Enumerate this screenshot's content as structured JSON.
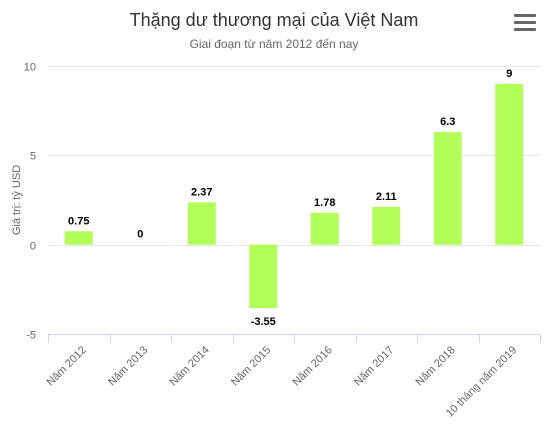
{
  "menu": {
    "icon": "hamburger-menu-icon"
  },
  "chart_data": {
    "type": "bar",
    "title": "Thặng dư thương mại của Việt Nam",
    "subtitle": "Giai đoạn từ năm 2012 đến nay",
    "ylabel": "Giá trị: tỷ USD",
    "xlabel": "",
    "categories": [
      "Năm 2012",
      "Năm 2013",
      "Năm 2014",
      "Năm 2015",
      "Năm 2016",
      "Năm 2017",
      "Năm 2018",
      "10 tháng năm 2019"
    ],
    "values": [
      0.75,
      0,
      2.37,
      -3.55,
      1.78,
      2.11,
      6.3,
      9
    ],
    "data_labels": [
      "0.75",
      "0",
      "2.37",
      "-3.55",
      "1.78",
      "2.11",
      "6.3",
      "9"
    ],
    "yticks": [
      -5,
      0,
      5,
      10
    ],
    "ytick_labels": [
      "-5",
      "0",
      "5",
      "10"
    ],
    "ylim": [
      -5,
      10
    ],
    "grid": true,
    "legend": "none",
    "colors": {
      "bar": "#b2ff59",
      "grid": "#e6e6e6",
      "axis": "#ccd6eb"
    }
  }
}
